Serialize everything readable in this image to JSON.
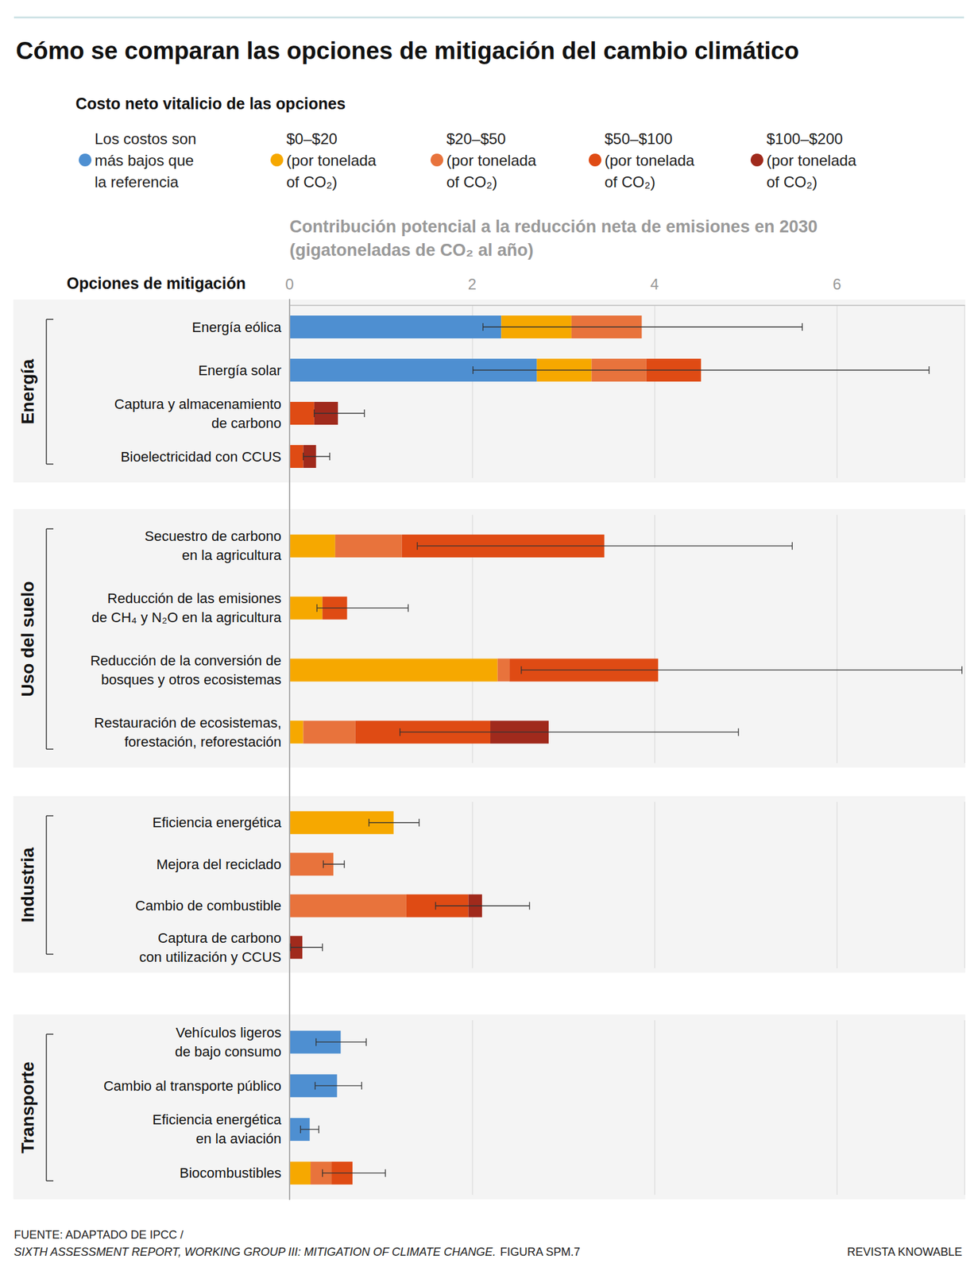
{
  "chart_data": {
    "type": "bar",
    "orientation": "horizontal",
    "stacked": true,
    "grid": true,
    "title": "Cómo se comparan las opciones de mitigación del cambio climático",
    "legend_title": "Costo neto vitalicio de las opciones",
    "x_label": "Contribución potencial a la reducción neta de emisiones en 2030\n(gigatoneladas de CO₂ al año)",
    "y_label": "Opciones de mitigación",
    "categories": [
      "Energía eólica",
      "Energía solar",
      "Captura y almacenamiento\nde carbono",
      "Bioelectricidad con CCUS",
      "Secuestro de carbono\nen la agricultura",
      "Reducción de las emisiones\nde CH₄ y N₂O en la agricultura",
      "Reducción de la conversión de\nbosques y otros ecosistemas",
      "Restauración de ecosistemas,\nforestación, reforestación",
      "Eficiencia energética",
      "Mejora del reciclado",
      "Cambio de combustible",
      "Captura de carbono\ncon utilización y CCUS",
      "Vehículos ligeros\nde bajo consumo",
      "Cambio al transporte público",
      "Eficiencia energética\nen la aviación",
      "Biocombustibles"
    ],
    "groups": [
      {
        "name": "Energía",
        "categories": [
          "Energía eólica",
          "Energía solar",
          "Captura y almacenamiento\nde carbono",
          "Bioelectricidad con CCUS"
        ]
      },
      {
        "name": "Uso del suelo",
        "categories": [
          "Secuestro de carbono\nen la agricultura",
          "Reducción de las emisiones\nde CH₄ y N₂O en la agricultura",
          "Reducción de la conversión de\nbosques y otros ecosistemas",
          "Restauración de ecosistemas,\nforestación, reforestación"
        ]
      },
      {
        "name": "Industria",
        "categories": [
          "Eficiencia energética",
          "Mejora del reciclado",
          "Cambio de combustible",
          "Captura de carbono\ncon utilización y CCUS"
        ]
      },
      {
        "name": "Transporte",
        "categories": [
          "Vehículos ligeros\nde bajo consumo",
          "Cambio al transporte público",
          "Eficiencia energética\nen la aviación",
          "Biocombustibles"
        ]
      }
    ],
    "series": [
      {
        "name": "Los costos son\nmás bajos que\nla referencia",
        "color": "#4e8fd1",
        "values": [
          2.32,
          2.71,
          null,
          null,
          null,
          null,
          null,
          null,
          null,
          null,
          null,
          null,
          0.56,
          0.52,
          0.22,
          null
        ]
      },
      {
        "name": "$0–$20\n(por tonelada\nof CO₂)",
        "color": "#f6a800",
        "values": [
          0.77,
          0.6,
          null,
          null,
          0.5,
          0.36,
          2.28,
          0.15,
          1.14,
          null,
          null,
          null,
          null,
          null,
          null,
          0.23
        ]
      },
      {
        "name": "$20–$50\n(por tonelada\nof CO₂)",
        "color": "#e8733c",
        "values": [
          0.77,
          0.6,
          null,
          null,
          0.73,
          null,
          0.13,
          0.57,
          null,
          0.48,
          1.28,
          null,
          null,
          null,
          null,
          0.23
        ]
      },
      {
        "name": "$50–$100\n(por tonelada\nof CO₂)",
        "color": "#df4b14",
        "values": [
          null,
          0.6,
          0.27,
          0.15,
          2.22,
          0.27,
          1.63,
          1.48,
          null,
          null,
          0.68,
          null,
          null,
          null,
          null,
          0.23
        ]
      },
      {
        "name": "$100–$200\n(por tonelada\nof CO₂)",
        "color": "#a02a1c",
        "values": [
          null,
          null,
          0.26,
          0.14,
          null,
          null,
          null,
          0.64,
          null,
          null,
          0.15,
          0.14,
          null,
          null,
          null,
          null
        ]
      }
    ],
    "error_range": [
      [
        2.12,
        5.62
      ],
      [
        2.01,
        7.01
      ],
      [
        0.27,
        0.82
      ],
      [
        0.15,
        0.44
      ],
      [
        1.4,
        5.51
      ],
      [
        0.3,
        1.3
      ],
      [
        2.54,
        7.37
      ],
      [
        1.21,
        4.92
      ],
      [
        0.87,
        1.42
      ],
      [
        0.37,
        0.6
      ],
      [
        1.6,
        2.63
      ],
      [
        0.01,
        0.36
      ],
      [
        0.29,
        0.84
      ],
      [
        0.28,
        0.79
      ],
      [
        0.12,
        0.32
      ],
      [
        0.36,
        1.05
      ]
    ],
    "xlim": [
      0,
      7.4
    ],
    "xticks": [
      0,
      2,
      4,
      6
    ],
    "source": [
      "FUENTE: ADAPTADO DE IPCC /",
      "SIXTH ASSESSMENT REPORT, WORKING GROUP III: MITIGATION OF CLIMATE CHANGE.",
      " FIGURA SPM.7"
    ],
    "credit": "REVISTA KNOWABLE"
  }
}
